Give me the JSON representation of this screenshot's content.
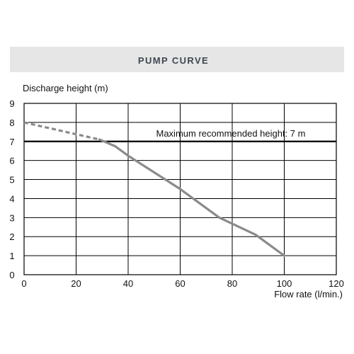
{
  "chart_data": {
    "type": "line",
    "title": "PUMP CURVE",
    "ylabel": "Discharge height (m)",
    "xlabel": "Flow rate (l/min.)",
    "xlim": [
      0,
      120
    ],
    "ylim": [
      0,
      9
    ],
    "x_ticks": [
      "0",
      "20",
      "40",
      "60",
      "80",
      "100",
      "120"
    ],
    "y_ticks": [
      "0",
      "1",
      "2",
      "3",
      "4",
      "5",
      "6",
      "7",
      "8",
      "9"
    ],
    "grid": true,
    "series": [
      {
        "color": "#8a8a8e",
        "dashed_segment": {
          "x": [
            0,
            29
          ],
          "y": [
            8.0,
            7.1
          ]
        },
        "solid_segment": {
          "x": [
            29,
            35,
            40,
            60,
            75,
            89,
            100
          ],
          "y": [
            7.1,
            6.75,
            6.25,
            4.5,
            3.0,
            2.1,
            1.0
          ]
        }
      }
    ],
    "annotations": [
      {
        "text": "Maximum recommended height: 7 m",
        "y": 7,
        "color": "#000000"
      }
    ]
  }
}
